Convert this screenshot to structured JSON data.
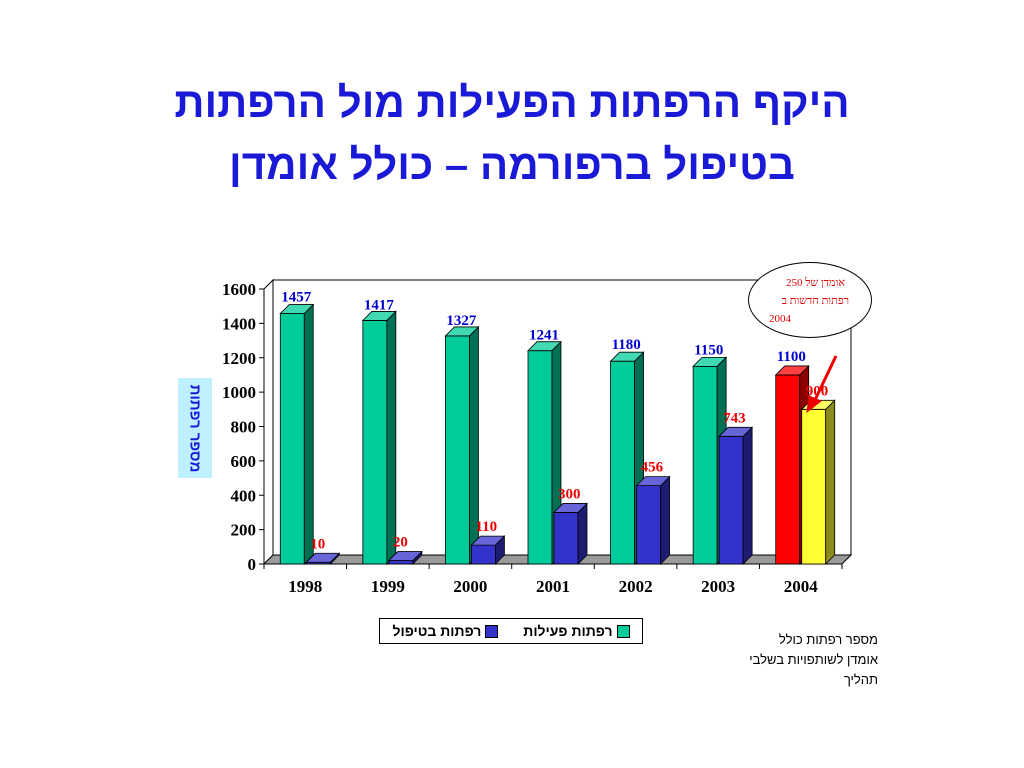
{
  "title": {
    "line1": "היקף הרפתות הפעילות מול הרפתות",
    "line2": "בטיפול ברפורמה – כולל אומדן"
  },
  "chart_data": {
    "type": "bar",
    "categories": [
      "1998",
      "1999",
      "2000",
      "2001",
      "2002",
      "2003",
      "2004"
    ],
    "series": [
      {
        "name": "רפתות פעילות",
        "values": [
          1457,
          1417,
          1327,
          1241,
          1180,
          1150,
          1100
        ],
        "color": "#00cc99",
        "highlight_last_color": "#ff0000",
        "label_color": "#0000cc"
      },
      {
        "name": "רפתות בטיפול",
        "values": [
          10,
          20,
          110,
          300,
          456,
          743,
          900
        ],
        "color": "#3333cc",
        "highlight_last_color": "#ffff33",
        "label_color": "#ee0000"
      }
    ],
    "ylabel": "מספר רפתות",
    "ylim": [
      0,
      1600
    ],
    "yticks": [
      0,
      200,
      400,
      600,
      800,
      1000,
      1200,
      1400,
      1600
    ],
    "grid": false,
    "legend_position": "bottom",
    "three_d": true
  },
  "callout": {
    "line1": "אומדן של 250",
    "line2": "רפתות חדשות ב",
    "line3": "2004",
    "color": "#e00000"
  },
  "note": {
    "line1": "מספר רפתות כולל",
    "line2": "אומדן לשותפויות בשלבי",
    "line3": "תהליך"
  },
  "colors": {
    "title": "#1a1ad6",
    "axis_label_bg": "#bff0ff",
    "arrow": "#ee0000"
  }
}
